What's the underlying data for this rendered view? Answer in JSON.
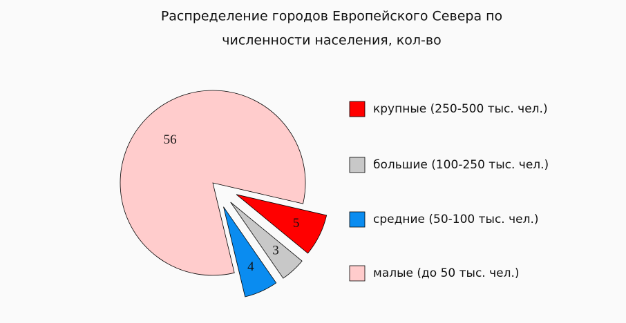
{
  "chart_data": {
    "type": "pie",
    "title": [
      "Распределение городов Европейского Севера по",
      "численности населения, кол-во"
    ],
    "categories": [
      "крупные (250-500 тыс. чел.)",
      "большие (100-250 тыс. чел.)",
      "средние (50-100 тыс. чел.)",
      "малые (до 50 тыс. чел.)"
    ],
    "values": [
      5,
      3,
      4,
      56
    ],
    "colors": [
      "#ff0000",
      "#c8c8c8",
      "#0a8cf0",
      "#ffcccc"
    ],
    "exploded": [
      true,
      true,
      true,
      false
    ],
    "legend": "right"
  }
}
